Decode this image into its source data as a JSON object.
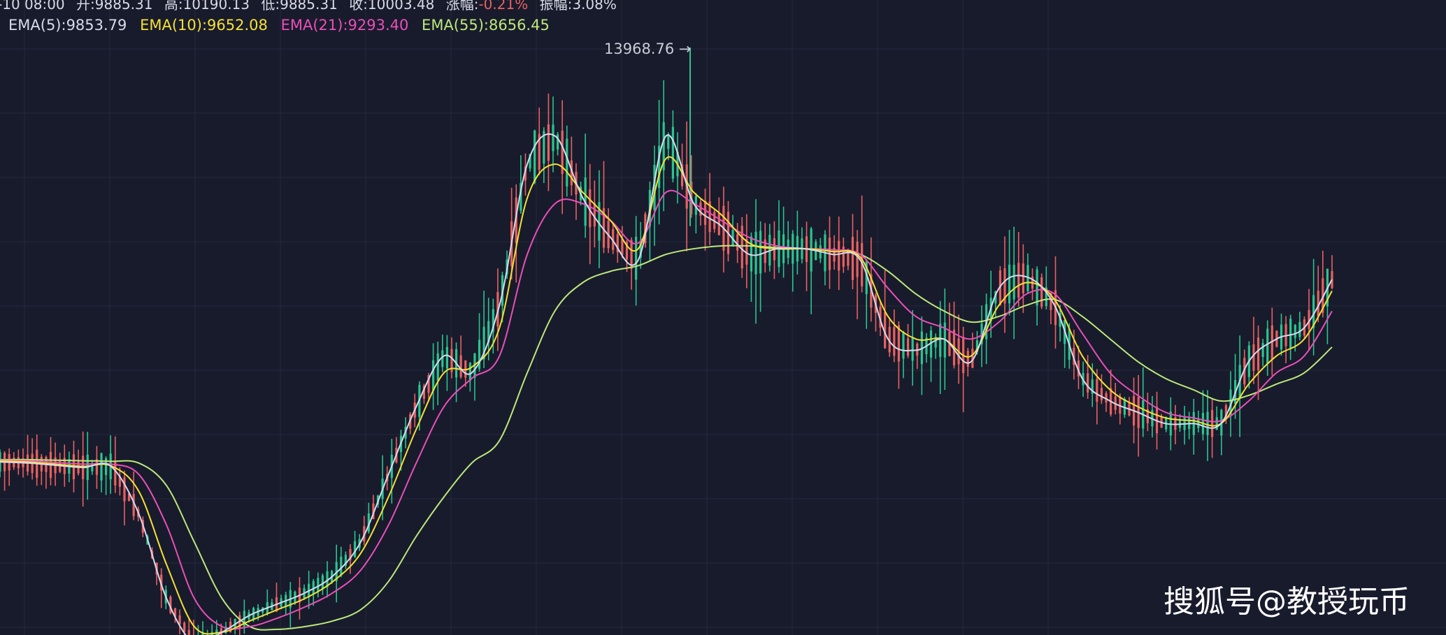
{
  "info": {
    "date": "-10 08:00",
    "open": "开:9885.31",
    "high": "高:10190.13",
    "low": "低:9885.31",
    "close": "收:10003.48",
    "change_label": "涨幅:",
    "change_value": "-0.21%",
    "amplitude": "振幅:3.08%"
  },
  "ema": {
    "ema5": "EMA(5):9853.79",
    "ema10": "EMA(10):9652.08",
    "ema21": "EMA(21):9293.40",
    "ema55": "EMA(55):8656.45"
  },
  "peak_label": "13968.76 →",
  "watermark": "搜狐号@教授玩币",
  "colors": {
    "background": "#181b2c",
    "up": "#2bc48f",
    "down": "#e86160",
    "ema5": "#d6dbee",
    "ema10": "#f6e133",
    "ema21": "#ea4fb8",
    "ema55": "#bde87a",
    "negative_change": "#e86160"
  },
  "chart_data": {
    "type": "candlestick",
    "ylim": [
      3500,
      15000
    ],
    "grid": true,
    "peak": 13968.76,
    "series": [
      {
        "name": "EMA(5)",
        "values": [
          6620,
          6600,
          6560,
          6520,
          6540,
          5700,
          4200,
          3400,
          3600,
          3900,
          4100,
          4300,
          4600,
          5200,
          6400,
          7600,
          8500,
          8200,
          9400,
          11900,
          12400,
          11300,
          10600,
          10200,
          12400,
          11200,
          10800,
          10300,
          10400,
          10400,
          10300,
          10200,
          8800,
          8600,
          8800,
          8400,
          9700,
          9900,
          9400,
          8100,
          7700,
          7500,
          7300,
          7300,
          7300,
          8400,
          8800,
          9000,
          9853.79
        ]
      },
      {
        "name": "EMA(10)",
        "values": [
          6640,
          6620,
          6580,
          6540,
          6550,
          6100,
          4800,
          3700,
          3600,
          3800,
          4000,
          4200,
          4500,
          5000,
          6000,
          7200,
          8200,
          8300,
          9000,
          11300,
          11900,
          11400,
          10900,
          10400,
          12000,
          11400,
          11000,
          10500,
          10400,
          10400,
          10350,
          10250,
          9200,
          8800,
          8800,
          8500,
          9400,
          9800,
          9500,
          8500,
          7900,
          7600,
          7400,
          7350,
          7300,
          8000,
          8500,
          8800,
          9652.08
        ]
      },
      {
        "name": "EMA(21)",
        "values": [
          6650,
          6640,
          6610,
          6580,
          6580,
          6400,
          5500,
          4200,
          3700,
          3700,
          3850,
          4050,
          4300,
          4700,
          5500,
          6600,
          7600,
          8100,
          8500,
          10300,
          11200,
          11200,
          10900,
          10500,
          11400,
          11200,
          10900,
          10600,
          10450,
          10400,
          10380,
          10300,
          9700,
          9200,
          9000,
          8800,
          9100,
          9600,
          9600,
          8900,
          8200,
          7800,
          7500,
          7400,
          7350,
          7700,
          8200,
          8500,
          9293.4
        ]
      },
      {
        "name": "EMA(55)",
        "values": [
          6660,
          6660,
          6650,
          6640,
          6630,
          6600,
          6200,
          5200,
          4200,
          3700,
          3650,
          3700,
          3800,
          4000,
          4500,
          5300,
          6000,
          6600,
          7000,
          8200,
          9300,
          9800,
          10000,
          10100,
          10300,
          10400,
          10450,
          10450,
          10420,
          10400,
          10380,
          10300,
          10000,
          9600,
          9300,
          9100,
          9200,
          9400,
          9500,
          9200,
          8800,
          8400,
          8100,
          7900,
          7700,
          7800,
          8000,
          8200,
          8656.45
        ]
      }
    ]
  }
}
